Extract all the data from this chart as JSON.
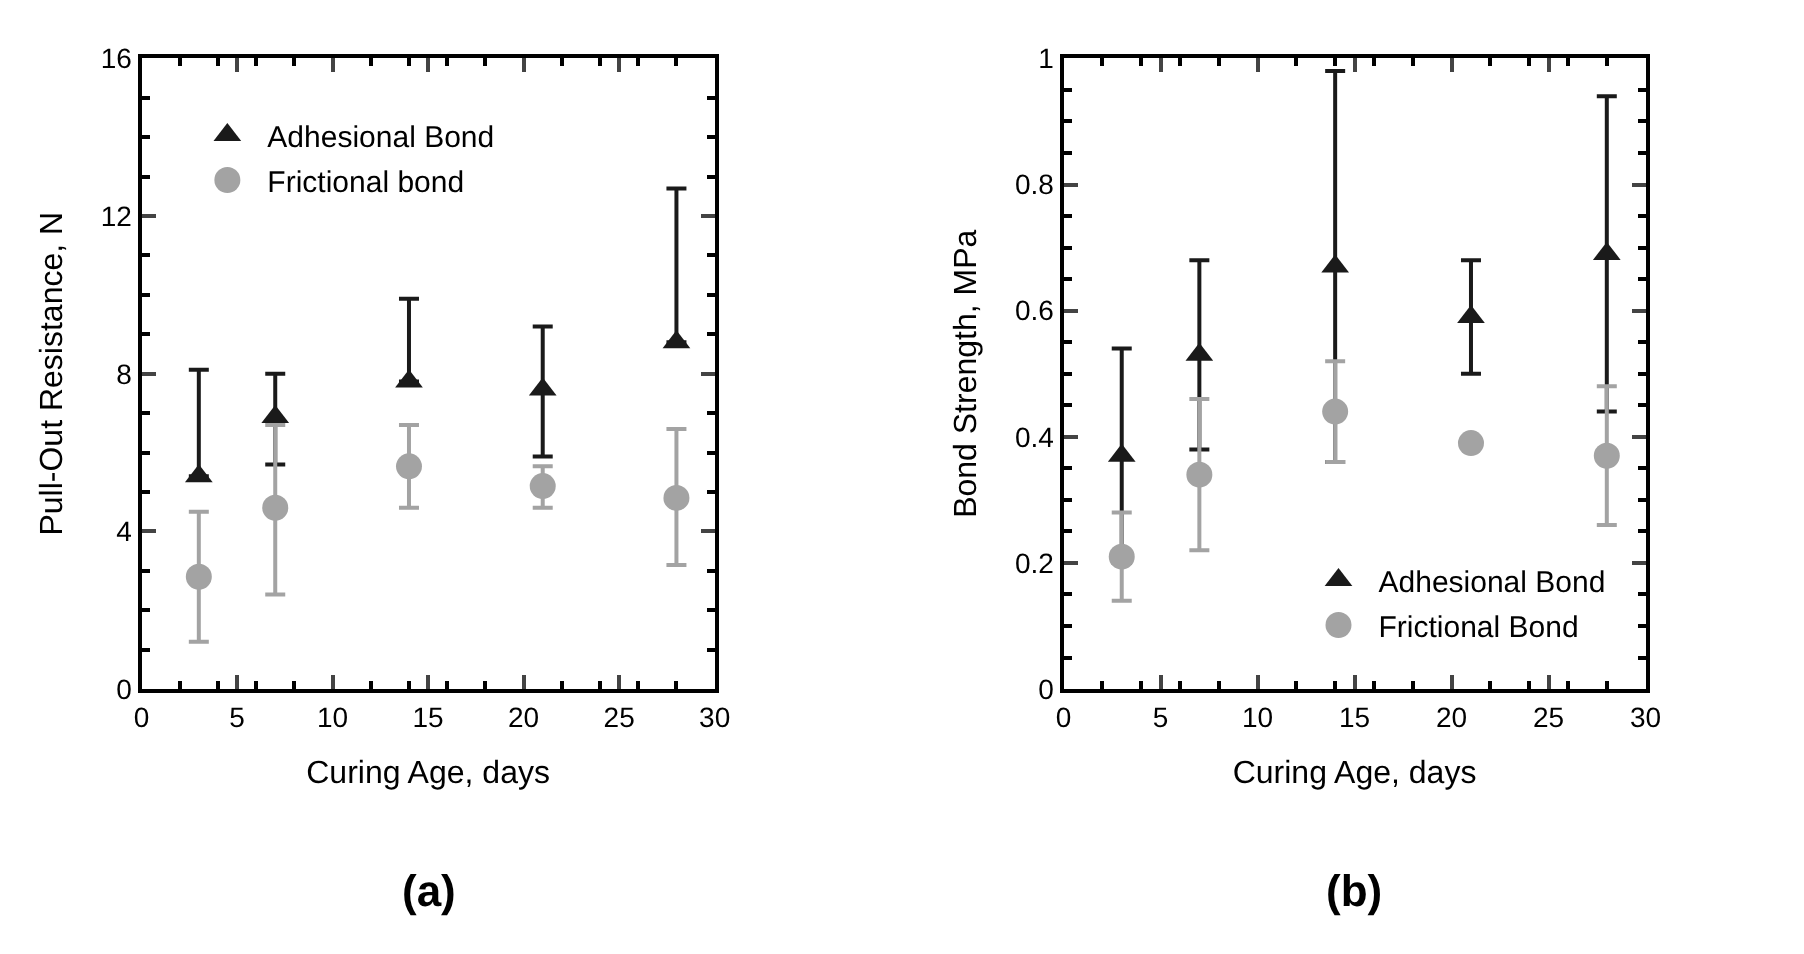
{
  "chart_data": [
    {
      "type": "scatter",
      "xlabel": "Curing Age, days",
      "ylabel": "Pull-Out Resistance, N",
      "x": [
        3,
        7,
        14,
        21,
        28
      ],
      "xlim": [
        0,
        30
      ],
      "xticks": [
        0,
        5,
        10,
        15,
        20,
        25,
        30
      ],
      "ylim": [
        0,
        16
      ],
      "yticks": [
        0,
        4,
        8,
        12,
        16
      ],
      "legend": "top left",
      "annotations": [
        "(a)"
      ],
      "series": [
        {
          "name": "Adhesional Bond",
          "color": "#1a1a1a",
          "marker": "triangle",
          "values": [
            5.4,
            6.9,
            7.8,
            7.6,
            8.8
          ],
          "errors": [
            [
              5.4,
              8.1
            ],
            [
              5.7,
              8.0
            ],
            [
              7.8,
              9.9
            ],
            [
              5.9,
              9.2
            ],
            [
              8.8,
              12.7
            ]
          ]
        },
        {
          "name": "Frictional bond",
          "color": "#a3a3a3",
          "marker": "circle",
          "values": [
            2.85,
            4.6,
            5.65,
            5.15,
            4.85
          ],
          "errors": [
            [
              1.2,
              4.5
            ],
            [
              2.4,
              6.7
            ],
            [
              4.6,
              6.7
            ],
            [
              4.6,
              5.65
            ],
            [
              3.15,
              6.6
            ]
          ]
        }
      ]
    },
    {
      "type": "scatter",
      "xlabel": "Curing Age, days",
      "ylabel": "Bond Strength, MPa",
      "x": [
        3,
        7,
        14,
        21,
        28
      ],
      "xlim": [
        0,
        30
      ],
      "xticks": [
        0,
        5,
        10,
        15,
        20,
        25,
        30
      ],
      "ylim": [
        0,
        1
      ],
      "yticks": [
        0,
        0.2,
        0.4,
        0.6,
        0.8,
        1
      ],
      "legend": "bottom right",
      "annotations": [
        "(b)"
      ],
      "series": [
        {
          "name": "Adhesional Bond",
          "color": "#1a1a1a",
          "marker": "triangle",
          "values": [
            0.37,
            0.53,
            0.67,
            0.59,
            0.69
          ],
          "errors": [
            [
              0.2,
              0.54
            ],
            [
              0.38,
              0.68
            ],
            [
              0.36,
              0.98
            ],
            [
              0.5,
              0.68
            ],
            [
              0.44,
              0.94
            ]
          ]
        },
        {
          "name": "Frictional Bond",
          "color": "#a3a3a3",
          "marker": "circle",
          "values": [
            0.21,
            0.34,
            0.44,
            0.39,
            0.37
          ],
          "errors": [
            [
              0.14,
              0.28
            ],
            [
              0.22,
              0.46
            ],
            [
              0.36,
              0.52
            ],
            null,
            [
              0.26,
              0.48
            ]
          ]
        }
      ]
    }
  ]
}
